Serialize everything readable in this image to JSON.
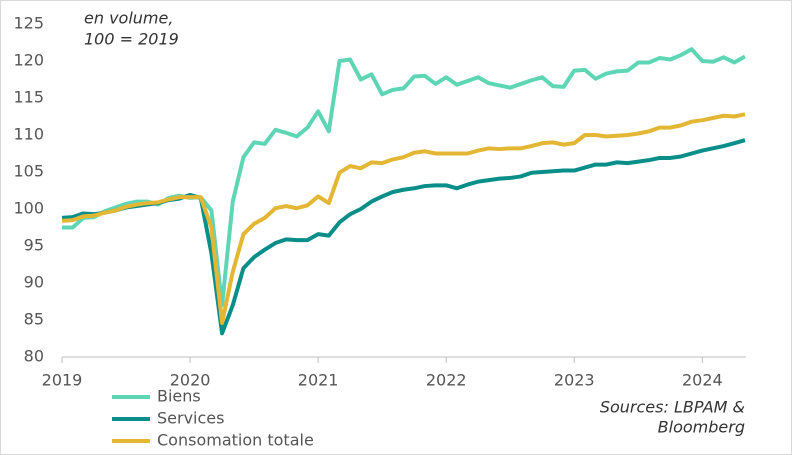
{
  "chart_data": {
    "type": "line",
    "annotation": [
      "en volume,",
      "100 = 2019"
    ],
    "source": [
      "Sources: LBPAM &",
      "Bloomberg"
    ],
    "categories": [
      "2019",
      null,
      null,
      null,
      null,
      null,
      null,
      null,
      null,
      null,
      null,
      null,
      "2020",
      null,
      null,
      null,
      null,
      null,
      null,
      null,
      null,
      null,
      null,
      null,
      "2021",
      null,
      null,
      null,
      null,
      null,
      null,
      null,
      null,
      null,
      null,
      null,
      "2022",
      null,
      null,
      null,
      null,
      null,
      null,
      null,
      null,
      null,
      null,
      null,
      "2023",
      null,
      null,
      null,
      null,
      null,
      null,
      null,
      null,
      null,
      null,
      null,
      "2024",
      null,
      null,
      null,
      null
    ],
    "series": [
      {
        "name": "Biens",
        "color": "#5ed6b6",
        "values": [
          97.5,
          97.5,
          98.8,
          98.9,
          99.7,
          100.2,
          100.7,
          101.0,
          101.0,
          100.6,
          101.5,
          101.8,
          101.5,
          101.6,
          99.8,
          87.0,
          101.0,
          107.0,
          109.0,
          108.8,
          110.7,
          110.3,
          109.8,
          111.0,
          113.2,
          110.5,
          120.0,
          120.2,
          117.5,
          118.2,
          115.5,
          116.1,
          116.3,
          117.9,
          118.0,
          116.9,
          117.8,
          116.8,
          117.3,
          117.8,
          117.0,
          116.7,
          116.4,
          116.9,
          117.4,
          117.8,
          116.6,
          116.5,
          118.7,
          118.8,
          117.6,
          118.3,
          118.6,
          118.7,
          119.8,
          119.8,
          120.4,
          120.2,
          120.8,
          121.6,
          120.0,
          119.9,
          120.5,
          119.8,
          120.6
        ]
      },
      {
        "name": "Services",
        "color": "#0a8e8a",
        "values": [
          98.8,
          98.9,
          99.4,
          99.3,
          99.5,
          99.8,
          100.2,
          100.4,
          100.6,
          100.8,
          101.2,
          101.4,
          101.9,
          101.5,
          94.0,
          83.2,
          87.0,
          92.0,
          93.5,
          94.5,
          95.4,
          95.9,
          95.8,
          95.8,
          96.6,
          96.4,
          98.2,
          99.3,
          100.0,
          101.0,
          101.7,
          102.3,
          102.6,
          102.8,
          103.1,
          103.2,
          103.2,
          102.8,
          103.3,
          103.7,
          103.9,
          104.1,
          104.2,
          104.4,
          104.9,
          105.0,
          105.1,
          105.2,
          105.2,
          105.6,
          106.0,
          106.0,
          106.3,
          106.2,
          106.4,
          106.6,
          106.9,
          106.9,
          107.1,
          107.5,
          107.9,
          108.2,
          108.5,
          108.9,
          109.3
        ]
      },
      {
        "name": "Consomation totale",
        "color": "#e3b634",
        "values": [
          98.4,
          98.5,
          99.0,
          99.1,
          99.5,
          99.8,
          100.3,
          100.6,
          100.8,
          100.9,
          101.3,
          101.6,
          101.6,
          101.6,
          97.5,
          84.6,
          91.5,
          96.6,
          98.0,
          98.8,
          100.1,
          100.4,
          100.1,
          100.5,
          101.7,
          100.8,
          104.9,
          105.8,
          105.5,
          106.3,
          106.2,
          106.7,
          107.0,
          107.6,
          107.8,
          107.5,
          107.5,
          107.5,
          107.5,
          107.9,
          108.2,
          108.1,
          108.2,
          108.2,
          108.5,
          108.9,
          109.0,
          108.7,
          108.9,
          110.0,
          110.0,
          109.8,
          109.9,
          110.0,
          110.2,
          110.5,
          111.0,
          111.0,
          111.3,
          111.8,
          112.0,
          112.3,
          112.6,
          112.5,
          112.8
        ]
      }
    ],
    "ylim": [
      80,
      125
    ],
    "yticks": [
      80,
      85,
      90,
      95,
      100,
      105,
      110,
      115,
      120,
      125
    ],
    "grid": false
  }
}
